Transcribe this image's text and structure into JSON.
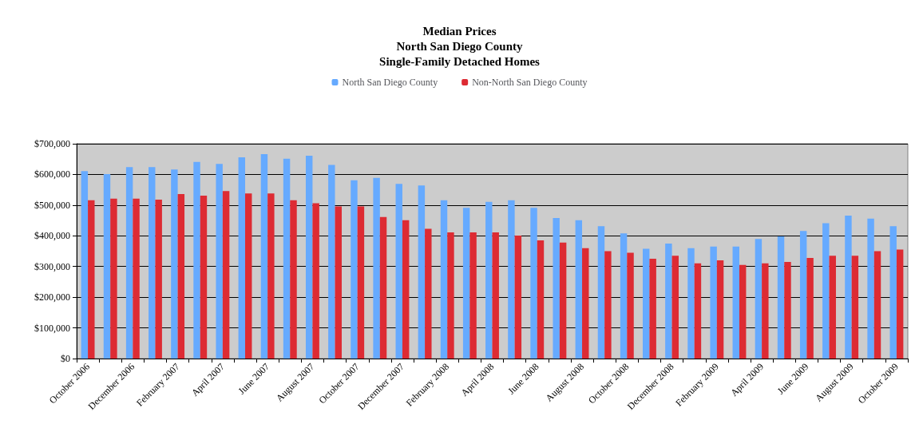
{
  "chart_data": {
    "type": "bar",
    "title": "Median Prices\nNorth San Diego County\nSingle-Family Detached Homes",
    "categories": [
      "October 2006",
      null,
      "December 2006",
      null,
      "February 2007",
      null,
      "April 2007",
      null,
      "June 2007",
      null,
      "August 2007",
      null,
      "October 2007",
      null,
      "December 2007",
      null,
      "February 2008",
      null,
      "April 2008",
      null,
      "June 2008",
      null,
      "August 2008",
      null,
      "October 2008",
      null,
      "December 2008",
      null,
      "February 2009",
      null,
      "April 2009",
      null,
      "June 2009",
      null,
      "August 2009",
      null,
      "October 2009"
    ],
    "series": [
      {
        "name": "North San Diego County",
        "color": "#66aaff",
        "values": [
          611000,
          601000,
          624000,
          624000,
          616000,
          641000,
          634000,
          656000,
          666000,
          651000,
          661000,
          631000,
          581000,
          589000,
          569000,
          564000,
          516000,
          491000,
          511000,
          516000,
          491000,
          458000,
          451000,
          431000,
          408000,
          358000,
          375000,
          360000,
          365000,
          365000,
          390000,
          398000,
          416000,
          441000,
          466000,
          456000,
          431000
        ]
      },
      {
        "name": "Non-North San Diego County",
        "color": "#dd2b33",
        "values": [
          516000,
          521000,
          521000,
          518000,
          536000,
          531000,
          546000,
          538000,
          538000,
          516000,
          506000,
          496000,
          496000,
          461000,
          451000,
          423000,
          411000,
          411000,
          411000,
          401000,
          385000,
          378000,
          360000,
          350000,
          345000,
          325000,
          335000,
          310000,
          320000,
          305000,
          310000,
          315000,
          328000,
          335000,
          335000,
          350000,
          355000
        ]
      }
    ],
    "ylim": [
      0,
      700000
    ],
    "yticks": [
      {
        "value": 0,
        "label": "$0"
      },
      {
        "value": 100000,
        "label": "$100,000"
      },
      {
        "value": 200000,
        "label": "$200,000"
      },
      {
        "value": 300000,
        "label": "$300,000"
      },
      {
        "value": 400000,
        "label": "$400,000"
      },
      {
        "value": 500000,
        "label": "$500,000"
      },
      {
        "value": 600000,
        "label": "$600,000"
      },
      {
        "value": 700000,
        "label": "$700,000"
      }
    ],
    "grid": "y",
    "legend": "top"
  }
}
